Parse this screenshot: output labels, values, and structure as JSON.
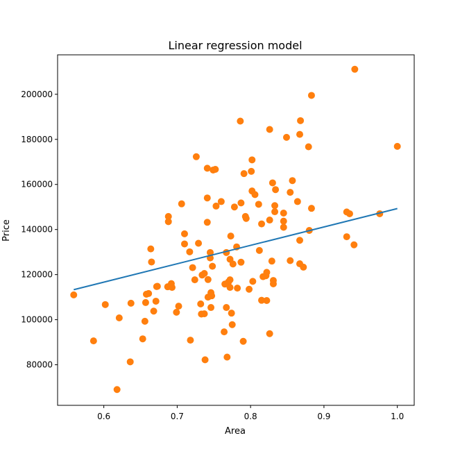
{
  "chart_data": {
    "type": "scatter",
    "title": "Linear regression model",
    "xlabel": "Area",
    "ylabel": "Price",
    "xlim": [
      0.537,
      1.023
    ],
    "ylim": [
      62000,
      217500
    ],
    "xticks": [
      0.6,
      0.7,
      0.8,
      0.9,
      1.0
    ],
    "xtick_labels": [
      "0.6",
      "0.7",
      "0.8",
      "0.9",
      "1.0"
    ],
    "yticks": [
      80000,
      100000,
      120000,
      140000,
      160000,
      180000,
      200000
    ],
    "ytick_labels": [
      "80000",
      "100000",
      "120000",
      "140000",
      "160000",
      "180000",
      "200000"
    ],
    "grid": false,
    "series": [
      {
        "type": "scatter",
        "color": "#ff7f0e",
        "points": [
          [
            0.559,
            111000
          ],
          [
            0.586,
            90600
          ],
          [
            0.602,
            106700
          ],
          [
            0.618,
            69000
          ],
          [
            0.621,
            100800
          ],
          [
            0.636,
            81300
          ],
          [
            0.637,
            107300
          ],
          [
            0.653,
            91500
          ],
          [
            0.656,
            99300
          ],
          [
            0.657,
            107600
          ],
          [
            0.658,
            111300
          ],
          [
            0.661,
            111600
          ],
          [
            0.664,
            131400
          ],
          [
            0.665,
            125600
          ],
          [
            0.668,
            103800
          ],
          [
            0.671,
            108200
          ],
          [
            0.672,
            114700
          ],
          [
            0.673,
            114800
          ],
          [
            0.687,
            114600
          ],
          [
            0.688,
            143500
          ],
          [
            0.688,
            145800
          ],
          [
            0.69,
            114800
          ],
          [
            0.692,
            116000
          ],
          [
            0.693,
            114300
          ],
          [
            0.699,
            103300
          ],
          [
            0.702,
            106000
          ],
          [
            0.706,
            151400
          ],
          [
            0.71,
            138100
          ],
          [
            0.71,
            133600
          ],
          [
            0.717,
            130100
          ],
          [
            0.718,
            90900
          ],
          [
            0.721,
            123100
          ],
          [
            0.724,
            117700
          ],
          [
            0.726,
            172300
          ],
          [
            0.729,
            133900
          ],
          [
            0.732,
            107000
          ],
          [
            0.733,
            102500
          ],
          [
            0.734,
            119800
          ],
          [
            0.737,
            102600
          ],
          [
            0.737,
            120500
          ],
          [
            0.738,
            82200
          ],
          [
            0.741,
            167200
          ],
          [
            0.741,
            154000
          ],
          [
            0.741,
            143200
          ],
          [
            0.742,
            117800
          ],
          [
            0.742,
            110000
          ],
          [
            0.745,
            129800
          ],
          [
            0.745,
            127400
          ],
          [
            0.746,
            112000
          ],
          [
            0.746,
            105400
          ],
          [
            0.747,
            110600
          ],
          [
            0.748,
            123700
          ],
          [
            0.749,
            166400
          ],
          [
            0.752,
            166700
          ],
          [
            0.753,
            150400
          ],
          [
            0.76,
            152400
          ],
          [
            0.764,
            94600
          ],
          [
            0.765,
            115800
          ],
          [
            0.767,
            105400
          ],
          [
            0.767,
            129800
          ],
          [
            0.768,
            83400
          ],
          [
            0.77,
            116800
          ],
          [
            0.772,
            114300
          ],
          [
            0.772,
            117700
          ],
          [
            0.772,
            126800
          ],
          [
            0.773,
            137100
          ],
          [
            0.774,
            102900
          ],
          [
            0.775,
            97800
          ],
          [
            0.776,
            124700
          ],
          [
            0.778,
            150000
          ],
          [
            0.781,
            132300
          ],
          [
            0.782,
            114000
          ],
          [
            0.786,
            188100
          ],
          [
            0.787,
            151800
          ],
          [
            0.787,
            125500
          ],
          [
            0.79,
            90400
          ],
          [
            0.791,
            164800
          ],
          [
            0.793,
            145800
          ],
          [
            0.794,
            144900
          ],
          [
            0.798,
            113500
          ],
          [
            0.801,
            165800
          ],
          [
            0.802,
            170900
          ],
          [
            0.802,
            157100
          ],
          [
            0.803,
            117000
          ],
          [
            0.806,
            155500
          ],
          [
            0.811,
            151200
          ],
          [
            0.812,
            130700
          ],
          [
            0.815,
            108600
          ],
          [
            0.815,
            142500
          ],
          [
            0.817,
            119100
          ],
          [
            0.821,
            119500
          ],
          [
            0.822,
            108500
          ],
          [
            0.822,
            121000
          ],
          [
            0.826,
            184400
          ],
          [
            0.826,
            144200
          ],
          [
            0.826,
            93800
          ],
          [
            0.829,
            126000
          ],
          [
            0.83,
            160700
          ],
          [
            0.831,
            115900
          ],
          [
            0.831,
            117400
          ],
          [
            0.833,
            150600
          ],
          [
            0.833,
            147900
          ],
          [
            0.834,
            157700
          ],
          [
            0.845,
            143700
          ],
          [
            0.845,
            141000
          ],
          [
            0.845,
            147300
          ],
          [
            0.849,
            180900
          ],
          [
            0.854,
            156500
          ],
          [
            0.854,
            126200
          ],
          [
            0.857,
            161700
          ],
          [
            0.864,
            152400
          ],
          [
            0.867,
            135200
          ],
          [
            0.867,
            182200
          ],
          [
            0.867,
            124800
          ],
          [
            0.868,
            188300
          ],
          [
            0.872,
            123300
          ],
          [
            0.879,
            176700
          ],
          [
            0.88,
            139600
          ],
          [
            0.883,
            199500
          ],
          [
            0.883,
            149400
          ],
          [
            0.931,
            136800
          ],
          [
            0.931,
            147800
          ],
          [
            0.935,
            147000
          ],
          [
            0.941,
            133200
          ],
          [
            0.942,
            211100
          ],
          [
            0.976,
            147000
          ],
          [
            1.0,
            176900
          ]
        ]
      },
      {
        "type": "line",
        "color": "#1f77b4",
        "points": [
          [
            0.559,
            113300
          ],
          [
            1.0,
            149300
          ]
        ]
      }
    ]
  }
}
